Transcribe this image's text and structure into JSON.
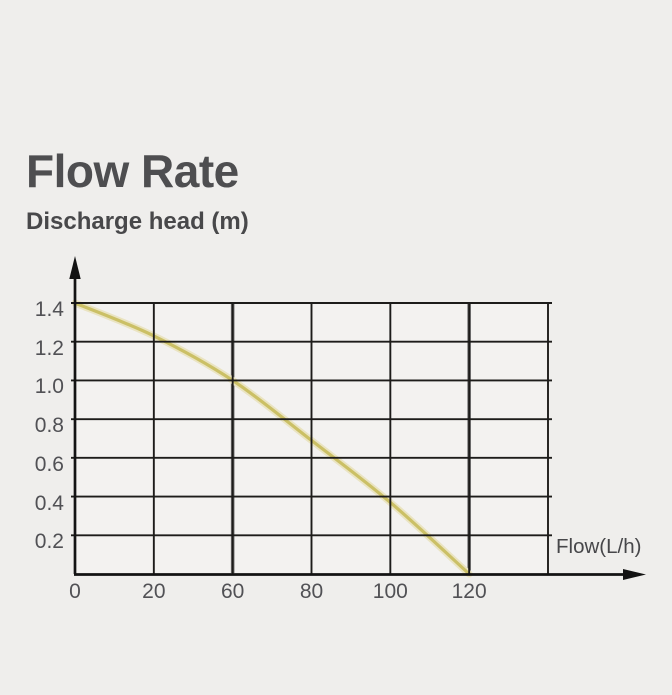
{
  "header": {
    "title": "Flow Rate",
    "subtitle": "Discharge head (m)"
  },
  "chart_data": {
    "type": "line",
    "title": "Flow Rate",
    "y_axis_title": "Discharge head (m)",
    "x_axis_label": "Flow(L/h)",
    "x_tick_labels": [
      "0",
      "20",
      "60",
      "80",
      "100",
      "120"
    ],
    "y_tick_labels": [
      "0.2",
      "0.4",
      "0.6",
      "0.8",
      "1.0",
      "1.2",
      "1.4"
    ],
    "ylim": [
      0,
      1.4
    ],
    "grid": true,
    "reference_line_ticks": [
      "60",
      "120"
    ],
    "series": [
      {
        "name": "discharge-head-curve",
        "x_labels": [
          "0",
          "20",
          "60",
          "80",
          "100",
          "120"
        ],
        "values": [
          1.4,
          1.23,
          1.0,
          0.69,
          0.37,
          0
        ]
      }
    ],
    "colors": {
      "background": "#efeeec",
      "plot_background": "#f3f2f0",
      "grid": "#1d1c1a",
      "axis": "#131313",
      "reference_line": "#6f6f6f",
      "curve": "#cbc066",
      "curve_halo": "#eae4c2",
      "text": "#4e4e50"
    }
  }
}
